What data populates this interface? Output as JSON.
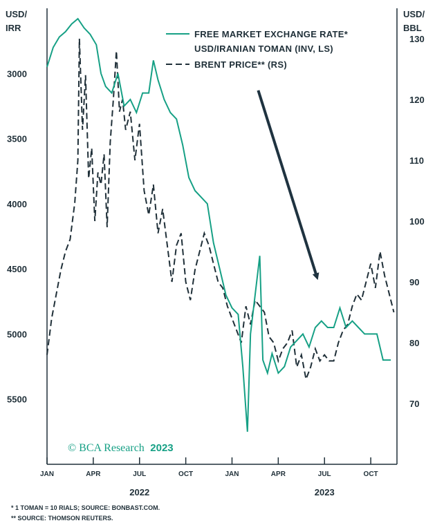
{
  "colors": {
    "fx_line": "#16a085",
    "brent_line": "#1f2f38",
    "axis": "#1f2f38",
    "arrow": "#1f3340",
    "watermark": "#16a085"
  },
  "chart_data": {
    "type": "line",
    "title": "",
    "left_axis": {
      "label_line1": "USD/",
      "label_line2": "IRR",
      "range": [
        2500,
        6000
      ],
      "inverted": true,
      "ticks": [
        3000,
        3500,
        4000,
        4500,
        5000,
        5500
      ]
    },
    "right_axis": {
      "label_line1": "USD/",
      "label_line2": "BBL",
      "range": [
        60,
        135
      ],
      "ticks": [
        70,
        80,
        90,
        100,
        110,
        120,
        130
      ]
    },
    "x_axis": {
      "range_months": [
        0,
        22.7
      ],
      "month_ticks": [
        {
          "label": "JAN",
          "month": 0
        },
        {
          "label": "APR",
          "month": 3
        },
        {
          "label": "JUL",
          "month": 6
        },
        {
          "label": "OCT",
          "month": 9
        },
        {
          "label": "JAN",
          "month": 12
        },
        {
          "label": "APR",
          "month": 15
        },
        {
          "label": "JUL",
          "month": 18
        },
        {
          "label": "OCT",
          "month": 21
        }
      ],
      "years": [
        {
          "label": "2022",
          "month": 6
        },
        {
          "label": "2023",
          "month": 18
        }
      ]
    },
    "legend": [
      {
        "label": "FREE MARKET EXCHANGE RATE* USD/IRANIAN TOMAN (INV, LS)",
        "line1": "FREE MARKET EXCHANGE RATE*",
        "line2": "USD/IRANIAN TOMAN (INV, LS)",
        "style": "solid"
      },
      {
        "label": "BRENT PRICE** (RS)",
        "style": "dashed"
      }
    ],
    "series": [
      {
        "name": "FREE MARKET EXCHANGE RATE* USD/IRANIAN TOMAN (INV, LS)",
        "axis": "left",
        "style": "solid",
        "x": [
          0.0,
          0.4,
          0.8,
          1.2,
          1.6,
          2.0,
          2.4,
          2.8,
          3.2,
          3.5,
          3.8,
          4.2,
          4.6,
          5.0,
          5.4,
          5.8,
          6.2,
          6.6,
          6.9,
          7.2,
          7.6,
          8.0,
          8.4,
          8.8,
          9.2,
          9.6,
          10.0,
          10.4,
          10.8,
          11.2,
          11.6,
          12.0,
          12.4,
          12.7,
          13.0,
          13.2,
          13.5,
          13.8,
          14.0,
          14.3,
          14.6,
          15.0,
          15.4,
          15.8,
          16.2,
          16.6,
          17.0,
          17.4,
          17.8,
          18.2,
          18.6,
          19.0,
          19.4,
          19.8,
          20.2,
          20.6,
          21.0,
          21.4,
          21.8,
          22.3
        ],
        "values": [
          2950,
          2800,
          2720,
          2680,
          2620,
          2580,
          2650,
          2700,
          2780,
          3000,
          3100,
          3150,
          3000,
          3250,
          3200,
          3300,
          3150,
          3150,
          2900,
          3050,
          3200,
          3300,
          3350,
          3550,
          3800,
          3900,
          3950,
          4000,
          4300,
          4500,
          4700,
          4800,
          4850,
          5250,
          5750,
          5000,
          4700,
          4400,
          5200,
          5300,
          5150,
          5300,
          5250,
          5100,
          5050,
          5000,
          5100,
          4950,
          4900,
          4950,
          4950,
          4800,
          4950,
          4900,
          4950,
          5000,
          5000,
          5000,
          5200,
          5200
        ]
      },
      {
        "name": "BRENT PRICE** (RS)",
        "axis": "right",
        "style": "dashed",
        "x": [
          0.0,
          0.3,
          0.6,
          0.9,
          1.2,
          1.5,
          1.8,
          2.0,
          2.1,
          2.3,
          2.5,
          2.7,
          2.9,
          3.1,
          3.3,
          3.5,
          3.7,
          3.9,
          4.1,
          4.3,
          4.5,
          4.7,
          4.9,
          5.1,
          5.4,
          5.7,
          6.0,
          6.3,
          6.6,
          6.9,
          7.2,
          7.5,
          7.8,
          8.1,
          8.4,
          8.7,
          9.0,
          9.3,
          9.6,
          9.9,
          10.2,
          10.5,
          10.8,
          11.1,
          11.4,
          11.7,
          12.0,
          12.3,
          12.6,
          12.9,
          13.2,
          13.5,
          13.8,
          14.1,
          14.4,
          14.7,
          15.0,
          15.3,
          15.6,
          15.9,
          16.2,
          16.5,
          16.8,
          17.1,
          17.4,
          17.7,
          18.0,
          18.3,
          18.6,
          18.9,
          19.2,
          19.5,
          19.8,
          20.1,
          20.4,
          20.7,
          21.0,
          21.3,
          21.6,
          21.9,
          22.2,
          22.5
        ],
        "values": [
          78,
          84,
          88,
          92,
          95,
          97,
          103,
          110,
          130,
          115,
          124,
          107,
          112,
          100,
          108,
          106,
          111,
          99,
          113,
          120,
          128,
          118,
          120,
          115,
          118,
          110,
          116,
          105,
          101,
          106,
          98,
          102,
          96,
          90,
          96,
          98,
          90,
          87,
          92,
          95,
          98,
          96,
          93,
          90,
          89,
          86,
          84,
          82,
          80,
          86,
          83,
          87,
          86,
          85,
          81,
          80,
          77,
          79,
          80,
          82,
          76,
          78,
          74,
          76,
          79,
          77,
          78,
          77,
          77,
          80,
          82,
          83,
          86,
          88,
          87,
          90,
          93,
          89,
          95,
          91,
          88,
          85
        ]
      }
    ],
    "annotations": {
      "arrow": {
        "from_month": 13.7,
        "from_left_value": 3130,
        "to_month": 17.5,
        "to_left_value": 4560,
        "meaning": "downward trend"
      }
    },
    "watermark": {
      "text": "© BCA Research",
      "year": "2023"
    },
    "footnotes": [
      "*  1 TOMAN = 10 RIALS; SOURCE: BONBAST.COM.",
      "** SOURCE: THOMSON REUTERS."
    ]
  }
}
